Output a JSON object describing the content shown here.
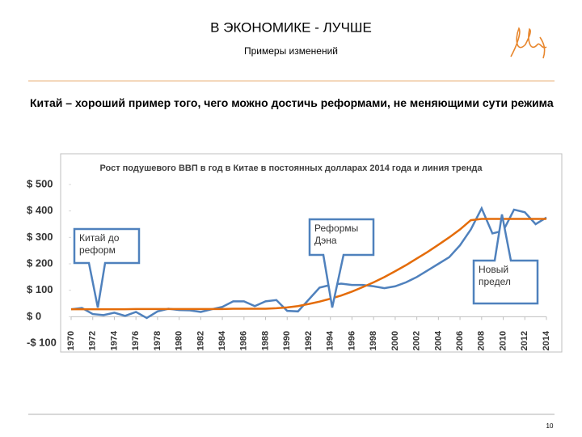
{
  "header": {
    "title": "В ЭКОНОМИКЕ - ЛУЧШЕ",
    "subtitle": "Примеры изменений"
  },
  "lead": "Китай – хороший пример того, чего можно достичь реформами, не меняющими сути режима",
  "chart_data": {
    "type": "line",
    "title": "Рост подушевого ВВП в год в Китае в постоянных долларах 2014 года и линия тренда",
    "x": [
      1970,
      1971,
      1972,
      1973,
      1974,
      1975,
      1976,
      1977,
      1978,
      1979,
      1980,
      1981,
      1982,
      1983,
      1984,
      1985,
      1986,
      1987,
      1988,
      1989,
      1990,
      1991,
      1992,
      1993,
      1994,
      1995,
      1996,
      1997,
      1998,
      1999,
      2000,
      2001,
      2002,
      2003,
      2004,
      2005,
      2006,
      2007,
      2008,
      2009,
      2010,
      2011,
      2012,
      2013,
      2014
    ],
    "series": [
      {
        "color": "#4f81bd",
        "values": [
          28,
          33,
          10,
          6,
          15,
          3,
          18,
          -5,
          20,
          30,
          25,
          24,
          18,
          28,
          37,
          58,
          58,
          40,
          58,
          63,
          22,
          20,
          65,
          110,
          120,
          125,
          120,
          120,
          115,
          108,
          115,
          130,
          150,
          175,
          200,
          225,
          270,
          330,
          410,
          315,
          325,
          405,
          395,
          350,
          375
        ]
      },
      {
        "color": "#e46c0a",
        "values": [
          28,
          28,
          28,
          28,
          28,
          28,
          29,
          29,
          29,
          29,
          29,
          29,
          29,
          29,
          29,
          30,
          30,
          30,
          30,
          32,
          35,
          40,
          48,
          57,
          68,
          80,
          95,
          112,
          130,
          150,
          172,
          195,
          220,
          245,
          272,
          300,
          330,
          365,
          370,
          370,
          370,
          370,
          370,
          370,
          370
        ]
      }
    ],
    "xlim": [
      1970,
      2014
    ],
    "xticks": [
      1970,
      1972,
      1974,
      1976,
      1978,
      1980,
      1982,
      1984,
      1986,
      1988,
      1990,
      1992,
      1994,
      1996,
      1998,
      2000,
      2002,
      2004,
      2006,
      2008,
      2010,
      2012,
      2014
    ],
    "ylim": [
      -100,
      500
    ],
    "yticks": [
      {
        "value": 500,
        "label": "$ 500"
      },
      {
        "value": 400,
        "label": "$ 400"
      },
      {
        "value": 300,
        "label": "$ 300"
      },
      {
        "value": 200,
        "label": "$ 200"
      },
      {
        "value": 100,
        "label": "$ 100"
      },
      {
        "value": 0,
        "label": "$ 0"
      },
      {
        "value": -100,
        "label": "-$ 100"
      }
    ],
    "annotations": [
      {
        "text": "Китай до реформ"
      },
      {
        "text": "Реформы Дэна"
      },
      {
        "text": "Новый предел"
      }
    ]
  },
  "footer": {
    "page": "10"
  }
}
